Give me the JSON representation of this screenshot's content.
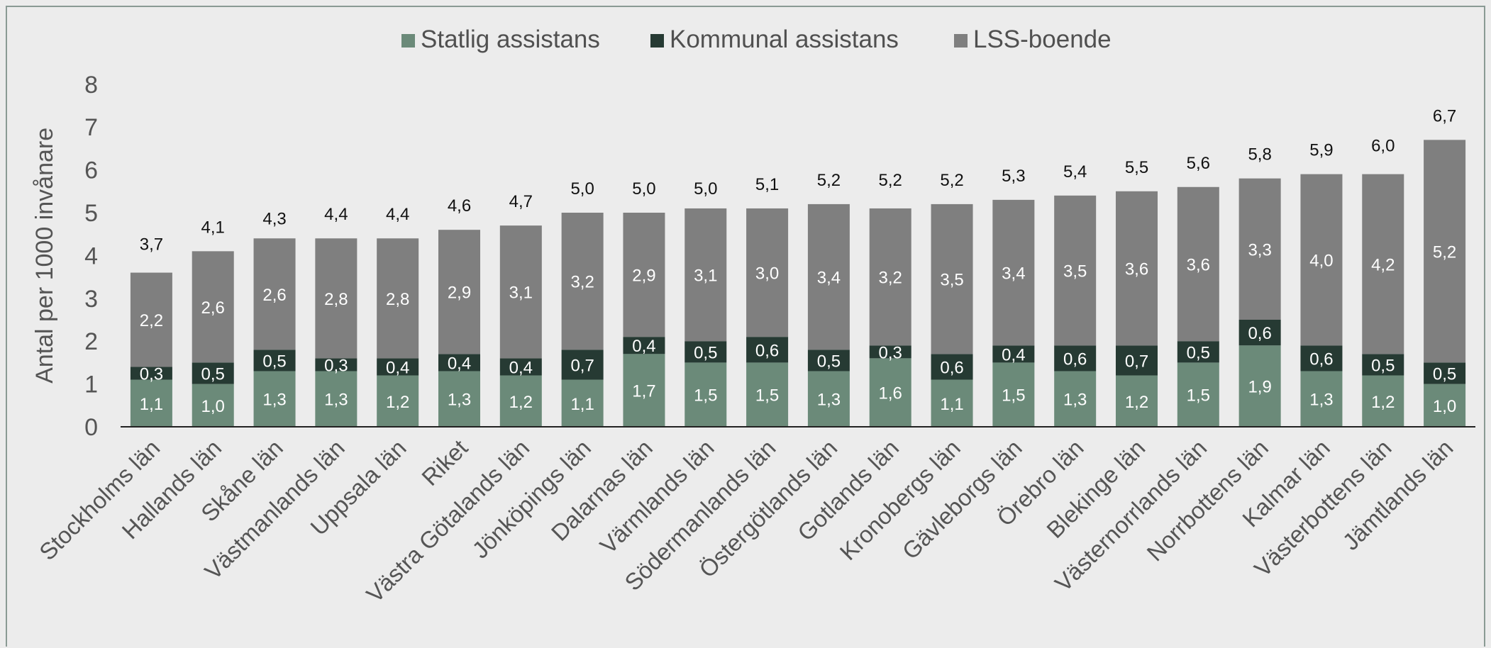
{
  "chart_data": {
    "type": "bar",
    "stacked": true,
    "title": "",
    "ylabel": "Antal per 1000 invånare",
    "xlabel": "",
    "ylim": [
      0,
      8
    ],
    "yticks": [
      "0",
      "1",
      "2",
      "3",
      "4",
      "5",
      "6",
      "7",
      "8"
    ],
    "grid": false,
    "legend_position": "top",
    "categories": [
      "Stockholms län",
      "Hallands län",
      "Skåne län",
      "Västmanlands län",
      "Uppsala län",
      "Riket",
      "Västra Götalands län",
      "Jönköpings län",
      "Dalarnas län",
      "Värmlands län",
      "Södermanlands län",
      "Östergötlands län",
      "Gotlands län",
      "Kronobergs län",
      "Gävleborgs län",
      "Örebro län",
      "Blekinge län",
      "Västernorrlands län",
      "Norrbottens län",
      "Kalmar län",
      "Västerbottens län",
      "Jämtlands län"
    ],
    "series": [
      {
        "name": "Statlig assistans",
        "color": "#6b8a79",
        "values": [
          1.1,
          1.0,
          1.3,
          1.3,
          1.2,
          1.3,
          1.2,
          1.1,
          1.7,
          1.5,
          1.5,
          1.3,
          1.6,
          1.1,
          1.5,
          1.3,
          1.2,
          1.5,
          1.9,
          1.3,
          1.2,
          1.0
        ],
        "labels": [
          "1,1",
          "1,0",
          "1,3",
          "1,3",
          "1,2",
          "1,3",
          "1,2",
          "1,1",
          "1,7",
          "1,5",
          "1,5",
          "1,3",
          "1,6",
          "1,1",
          "1,5",
          "1,3",
          "1,2",
          "1,5",
          "1,9",
          "1,3",
          "1,2",
          "1,0"
        ]
      },
      {
        "name": "Kommunal assistans",
        "color": "#263a33",
        "values": [
          0.3,
          0.5,
          0.5,
          0.3,
          0.4,
          0.4,
          0.4,
          0.7,
          0.4,
          0.5,
          0.6,
          0.5,
          0.3,
          0.6,
          0.4,
          0.6,
          0.7,
          0.5,
          0.6,
          0.6,
          0.5,
          0.5
        ],
        "labels": [
          "0,3",
          "0,5",
          "0,5",
          "0,3",
          "0,4",
          "0,4",
          "0,4",
          "0,7",
          "0,4",
          "0,5",
          "0,6",
          "0,5",
          "0,3",
          "0,6",
          "0,4",
          "0,6",
          "0,7",
          "0,5",
          "0,6",
          "0,6",
          "0,5",
          "0,5"
        ]
      },
      {
        "name": "LSS-boende",
        "color": "#7f7f7f",
        "values": [
          2.2,
          2.6,
          2.6,
          2.8,
          2.8,
          2.9,
          3.1,
          3.2,
          2.9,
          3.1,
          3.0,
          3.4,
          3.2,
          3.5,
          3.4,
          3.5,
          3.6,
          3.6,
          3.3,
          4.0,
          4.2,
          5.2
        ],
        "labels": [
          "2,2",
          "2,6",
          "2,6",
          "2,8",
          "2,8",
          "2,9",
          "3,1",
          "3,2",
          "2,9",
          "3,1",
          "3,0",
          "3,4",
          "3,2",
          "3,5",
          "3,4",
          "3,5",
          "3,6",
          "3,6",
          "3,3",
          "4,0",
          "4,2",
          "5,2"
        ]
      }
    ],
    "totals": [
      3.7,
      4.1,
      4.3,
      4.4,
      4.4,
      4.6,
      4.7,
      5.0,
      5.0,
      5.0,
      5.1,
      5.2,
      5.2,
      5.2,
      5.3,
      5.4,
      5.5,
      5.6,
      5.8,
      5.9,
      6.0,
      6.7
    ],
    "total_labels": [
      "3,7",
      "4,1",
      "4,3",
      "4,4",
      "4,4",
      "4,6",
      "4,7",
      "5,0",
      "5,0",
      "5,0",
      "5,1",
      "5,2",
      "5,2",
      "5,2",
      "5,3",
      "5,4",
      "5,5",
      "5,6",
      "5,8",
      "5,9",
      "6,0",
      "6,7"
    ]
  }
}
